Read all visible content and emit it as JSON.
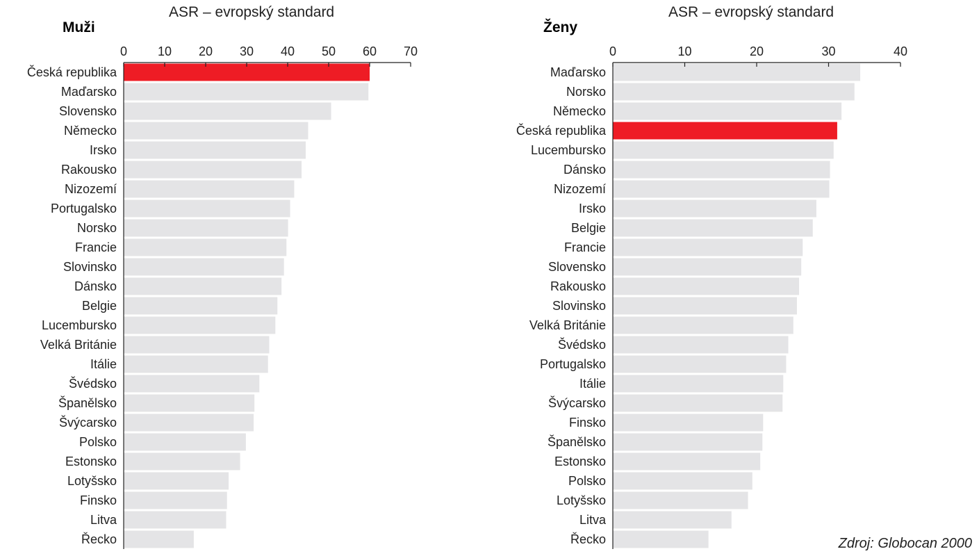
{
  "source": "Zdroj: Globocan 2000",
  "colors": {
    "highlight": "#ee1c25",
    "bar": "#e4e4e6",
    "axis": "#222222"
  },
  "chart_data": [
    {
      "type": "bar",
      "orientation": "horizontal",
      "title": "Muži",
      "xlabel": "ASR – evropský standard",
      "xlim": [
        0,
        70
      ],
      "ticks": [
        "0",
        "10",
        "20",
        "30",
        "40",
        "50",
        "60",
        "70"
      ],
      "highlight": "Česká republika",
      "categories": [
        "Česká republika",
        "Maďarsko",
        "Slovensko",
        "Německo",
        "Irsko",
        "Rakousko",
        "Nizozemí",
        "Portugalsko",
        "Norsko",
        "Francie",
        "Slovinsko",
        "Dánsko",
        "Belgie",
        "Lucembursko",
        "Velká Británie",
        "Itálie",
        "Švédsko",
        "Španělsko",
        "Švýcarsko",
        "Polsko",
        "Estonsko",
        "Lotyšsko",
        "Finsko",
        "Litva",
        "Řecko"
      ],
      "values": [
        60.0,
        59.7,
        50.6,
        45.0,
        44.4,
        43.4,
        41.6,
        40.6,
        40.1,
        39.7,
        39.1,
        38.5,
        37.5,
        37.0,
        35.5,
        35.2,
        33.1,
        31.9,
        31.7,
        29.8,
        28.4,
        25.6,
        25.2,
        25.0,
        17.1
      ]
    },
    {
      "type": "bar",
      "orientation": "horizontal",
      "title": "Ženy",
      "xlabel": "ASR – evropský standard",
      "xlim": [
        0,
        40
      ],
      "ticks": [
        "0",
        "10",
        "20",
        "30",
        "40"
      ],
      "highlight": "Česká republika",
      "categories": [
        "Maďarsko",
        "Norsko",
        "Německo",
        "Česká republika",
        "Lucembursko",
        "Dánsko",
        "Nizozemí",
        "Irsko",
        "Belgie",
        "Francie",
        "Slovensko",
        "Rakousko",
        "Slovinsko",
        "Velká Británie",
        "Švédsko",
        "Portugalsko",
        "Itálie",
        "Švýcarsko",
        "Finsko",
        "Španělsko",
        "Estonsko",
        "Polsko",
        "Lotyšsko",
        "Litva",
        "Řecko"
      ],
      "values": [
        34.4,
        33.6,
        31.8,
        31.2,
        30.7,
        30.2,
        30.1,
        28.3,
        27.8,
        26.4,
        26.2,
        25.9,
        25.6,
        25.1,
        24.4,
        24.1,
        23.7,
        23.6,
        20.9,
        20.8,
        20.5,
        19.4,
        18.8,
        16.5,
        13.3
      ]
    }
  ]
}
